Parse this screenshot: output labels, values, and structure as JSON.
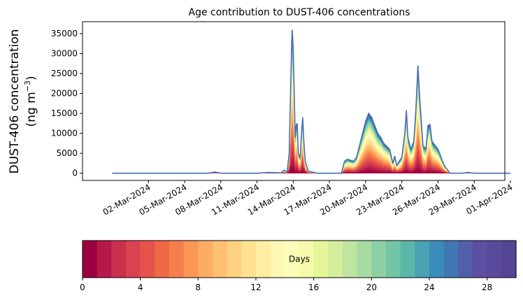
{
  "chart_data": {
    "type": "area",
    "title": "Age contribution to DUST-406 concentrations",
    "ylabel_line1": "DUST-406 concentration",
    "ylabel_line2_prefix": "(ng m",
    "ylabel_line2_sup": "−3",
    "ylabel_line2_suffix": ")",
    "xlabel": "",
    "x_start": "2024-02-28",
    "x_end": "2024-04-01",
    "xlim": [
      "2024-02-26",
      "2024-04-01"
    ],
    "ylim": [
      -1800,
      38000
    ],
    "yticks": [
      0,
      5000,
      10000,
      15000,
      20000,
      25000,
      30000,
      35000
    ],
    "ytick_labels": [
      "0",
      "5000",
      "10000",
      "15000",
      "20000",
      "25000",
      "30000",
      "35000"
    ],
    "xticks": [
      "2024-03-02",
      "2024-03-05",
      "2024-03-08",
      "2024-03-11",
      "2024-03-14",
      "2024-03-17",
      "2024-03-20",
      "2024-03-23",
      "2024-03-26",
      "2024-03-29",
      "2024-04-01"
    ],
    "xtick_labels": [
      "02-Mar-2024",
      "05-Mar-2024",
      "08-Mar-2024",
      "11-Mar-2024",
      "14-Mar-2024",
      "17-Mar-2024",
      "20-Mar-2024",
      "23-Mar-2024",
      "26-Mar-2024",
      "29-Mar-2024",
      "01-Apr-2024"
    ],
    "total_series": [
      [
        "2024-02-28",
        0
      ],
      [
        "2024-03-07",
        0
      ],
      [
        "2024-03-07T12:00",
        300
      ],
      [
        "2024-03-08",
        0
      ],
      [
        "2024-03-11",
        0
      ],
      [
        "2024-03-12",
        200
      ],
      [
        "2024-03-13",
        100
      ],
      [
        "2024-03-13T06:00",
        800
      ],
      [
        "2024-03-13T12:00",
        300
      ],
      [
        "2024-03-13T16:00",
        5000
      ],
      [
        "2024-03-13T19:00",
        22000
      ],
      [
        "2024-03-13T21:00",
        33000
      ],
      [
        "2024-03-13T22:00",
        36000
      ],
      [
        "2024-03-14",
        31000
      ],
      [
        "2024-03-14T02:00",
        20000
      ],
      [
        "2024-03-14T04:00",
        9000
      ],
      [
        "2024-03-14T06:00",
        12000
      ],
      [
        "2024-03-14T08:00",
        12500
      ],
      [
        "2024-03-14T10:00",
        5000
      ],
      [
        "2024-03-14T14:00",
        4000
      ],
      [
        "2024-03-14T17:00",
        11000
      ],
      [
        "2024-03-14T19:00",
        14000
      ],
      [
        "2024-03-14T21:00",
        8000
      ],
      [
        "2024-03-15",
        3000
      ],
      [
        "2024-03-15T06:00",
        500
      ],
      [
        "2024-03-16",
        0
      ],
      [
        "2024-03-18",
        0
      ],
      [
        "2024-03-18T06:00",
        3000
      ],
      [
        "2024-03-18T12:00",
        3500
      ],
      [
        "2024-03-19",
        3000
      ],
      [
        "2024-03-19T06:00",
        4000
      ],
      [
        "2024-03-19T12:00",
        7000
      ],
      [
        "2024-03-20",
        13000
      ],
      [
        "2024-03-20T06:00",
        15000
      ],
      [
        "2024-03-20T12:00",
        14000
      ],
      [
        "2024-03-21",
        10000
      ],
      [
        "2024-03-21T06:00",
        9000
      ],
      [
        "2024-03-21T12:00",
        7500
      ],
      [
        "2024-03-22",
        6000
      ],
      [
        "2024-03-22T06:00",
        2500
      ],
      [
        "2024-03-22T10:00",
        4300
      ],
      [
        "2024-03-22T14:00",
        2000
      ],
      [
        "2024-03-23",
        4000
      ],
      [
        "2024-03-23T06:00",
        10000
      ],
      [
        "2024-03-23T09:00",
        15800
      ],
      [
        "2024-03-23T12:00",
        9000
      ],
      [
        "2024-03-23T18:00",
        6000
      ],
      [
        "2024-03-24",
        8000
      ],
      [
        "2024-03-24T04:00",
        16000
      ],
      [
        "2024-03-24T08:00",
        27000
      ],
      [
        "2024-03-24T12:00",
        18000
      ],
      [
        "2024-03-24T18:00",
        7000
      ],
      [
        "2024-03-25",
        6000
      ],
      [
        "2024-03-25T04:00",
        12000
      ],
      [
        "2024-03-25T08:00",
        12200
      ],
      [
        "2024-03-25T12:00",
        8000
      ],
      [
        "2024-03-25T18:00",
        7000
      ],
      [
        "2024-03-26",
        6000
      ],
      [
        "2024-03-26T12:00",
        2000
      ],
      [
        "2024-03-27",
        0
      ],
      [
        "2024-03-28",
        0
      ],
      [
        "2024-03-28T12:00",
        200
      ],
      [
        "2024-03-29",
        0
      ],
      [
        "2024-04-01",
        0
      ]
    ],
    "age_bins_days": [
      0,
      1,
      2,
      3,
      4,
      5,
      6,
      7,
      8,
      9,
      10,
      11,
      12,
      13,
      14,
      15,
      16,
      17,
      18,
      19,
      20,
      21,
      22,
      23,
      24,
      25,
      26,
      27,
      28,
      29,
      30
    ],
    "colorbar": {
      "label": "Days",
      "ticks": [
        0,
        4,
        8,
        12,
        16,
        20,
        24,
        28
      ],
      "tick_labels": [
        "0",
        "4",
        "8",
        "12",
        "16",
        "20",
        "24",
        "28"
      ],
      "range": [
        0,
        30
      ],
      "colors": [
        "#9e0142",
        "#b41947",
        "#c8304c",
        "#d8434f",
        "#e5534a",
        "#f06947",
        "#f67f4b",
        "#fa9656",
        "#fdac63",
        "#fdbf71",
        "#fed180",
        "#fee291",
        "#ffeea2",
        "#fff8b4",
        "#fbfdb9",
        "#f3faa9",
        "#e6f598",
        "#d4ed9c",
        "#bfe5a0",
        "#a7dba4",
        "#8dd0a4",
        "#73c6a5",
        "#5cb7a9",
        "#48a2b2",
        "#3a8cba",
        "#4276b4",
        "#515eaa",
        "#5e4fa2",
        "#5a4a9c",
        "#554496"
      ]
    }
  }
}
